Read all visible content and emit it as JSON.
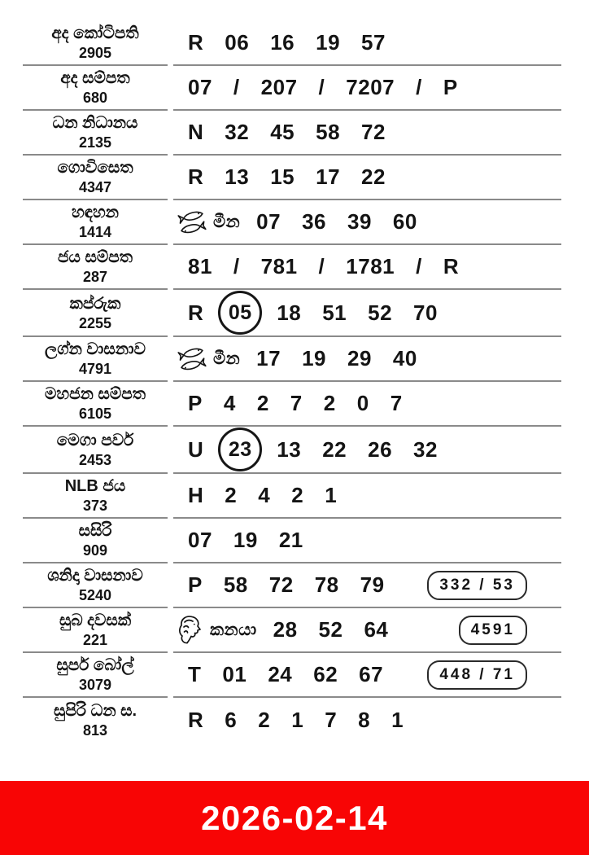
{
  "colors": {
    "divider": "#8a8a8a",
    "text": "#141414",
    "footer_bg": "#f80505",
    "footer_text": "#ffffff"
  },
  "icons": {
    "pisces": "pisces-icon",
    "virgo": "virgo-icon"
  },
  "footer": {
    "date": "2026-02-14"
  },
  "rows": [
    {
      "name": "අද කෝටිපති",
      "draw": "2905",
      "cells": [
        {
          "t": "letter",
          "v": "R"
        },
        {
          "t": "num",
          "v": "06"
        },
        {
          "t": "num",
          "v": "16"
        },
        {
          "t": "num",
          "v": "19"
        },
        {
          "t": "num",
          "v": "57"
        }
      ]
    },
    {
      "name": "අද සම්පත",
      "draw": "680",
      "cells": [
        {
          "t": "num",
          "v": "07"
        },
        {
          "t": "slash",
          "v": "/"
        },
        {
          "t": "num",
          "v": "207"
        },
        {
          "t": "slash",
          "v": "/"
        },
        {
          "t": "num",
          "v": "7207"
        },
        {
          "t": "slash",
          "v": "/"
        },
        {
          "t": "letter",
          "v": "P"
        }
      ]
    },
    {
      "name": "ධන නිධානය",
      "draw": "2135",
      "cells": [
        {
          "t": "letter",
          "v": "N"
        },
        {
          "t": "num",
          "v": "32"
        },
        {
          "t": "num",
          "v": "45"
        },
        {
          "t": "num",
          "v": "58"
        },
        {
          "t": "num",
          "v": "72"
        }
      ]
    },
    {
      "name": "ගොවිසෙත",
      "draw": "4347",
      "cells": [
        {
          "t": "letter",
          "v": "R"
        },
        {
          "t": "num",
          "v": "13"
        },
        {
          "t": "num",
          "v": "15"
        },
        {
          "t": "num",
          "v": "17"
        },
        {
          "t": "num",
          "v": "22"
        }
      ]
    },
    {
      "name": "හඳහන",
      "draw": "1414",
      "cells": [
        {
          "t": "zodiac",
          "icon": "pisces",
          "v": "මීන"
        },
        {
          "t": "num",
          "v": "07"
        },
        {
          "t": "num",
          "v": "36"
        },
        {
          "t": "num",
          "v": "39"
        },
        {
          "t": "num",
          "v": "60"
        }
      ]
    },
    {
      "name": "ජය සම්පත",
      "draw": "287",
      "cells": [
        {
          "t": "num",
          "v": "81"
        },
        {
          "t": "slash",
          "v": "/"
        },
        {
          "t": "num",
          "v": "781"
        },
        {
          "t": "slash",
          "v": "/"
        },
        {
          "t": "num",
          "v": "1781"
        },
        {
          "t": "slash",
          "v": "/"
        },
        {
          "t": "letter",
          "v": "R"
        }
      ]
    },
    {
      "name": "කප්රුක",
      "draw": "2255",
      "cells": [
        {
          "t": "letter",
          "v": "R"
        },
        {
          "t": "circled",
          "v": "05"
        },
        {
          "t": "num",
          "v": "18"
        },
        {
          "t": "num",
          "v": "51"
        },
        {
          "t": "num",
          "v": "52"
        },
        {
          "t": "num",
          "v": "70"
        }
      ]
    },
    {
      "name": "ලග්න වාසනාව",
      "draw": "4791",
      "cells": [
        {
          "t": "zodiac",
          "icon": "pisces",
          "v": "මීන"
        },
        {
          "t": "num",
          "v": "17"
        },
        {
          "t": "num",
          "v": "19"
        },
        {
          "t": "num",
          "v": "29"
        },
        {
          "t": "num",
          "v": "40"
        }
      ]
    },
    {
      "name": "මහජන සම්පත",
      "draw": "6105",
      "cells": [
        {
          "t": "letter",
          "v": "P"
        },
        {
          "t": "num",
          "v": "4"
        },
        {
          "t": "num",
          "v": "2"
        },
        {
          "t": "num",
          "v": "7"
        },
        {
          "t": "num",
          "v": "2"
        },
        {
          "t": "num",
          "v": "0"
        },
        {
          "t": "num",
          "v": "7"
        }
      ]
    },
    {
      "name": "මෙගා පවර්",
      "draw": "2453",
      "cells": [
        {
          "t": "letter",
          "v": "U"
        },
        {
          "t": "circled",
          "v": "23"
        },
        {
          "t": "num",
          "v": "13"
        },
        {
          "t": "num",
          "v": "22"
        },
        {
          "t": "num",
          "v": "26"
        },
        {
          "t": "num",
          "v": "32"
        }
      ]
    },
    {
      "name": "NLB ජය",
      "draw": "373",
      "cells": [
        {
          "t": "letter",
          "v": "H"
        },
        {
          "t": "num",
          "v": "2"
        },
        {
          "t": "num",
          "v": "4"
        },
        {
          "t": "num",
          "v": "2"
        },
        {
          "t": "num",
          "v": "1"
        }
      ]
    },
    {
      "name": "සසිරි",
      "draw": "909",
      "cells": [
        {
          "t": "num",
          "v": "07"
        },
        {
          "t": "num",
          "v": "19"
        },
        {
          "t": "num",
          "v": "21"
        }
      ]
    },
    {
      "name": "ශනිදා වාසනාව",
      "draw": "5240",
      "cells": [
        {
          "t": "letter",
          "v": "P"
        },
        {
          "t": "num",
          "v": "58"
        },
        {
          "t": "num",
          "v": "72"
        },
        {
          "t": "num",
          "v": "78"
        },
        {
          "t": "num",
          "v": "79"
        },
        {
          "t": "box",
          "v": "332 / 53"
        }
      ]
    },
    {
      "name": "සුබ දවසක්",
      "draw": "221",
      "cells": [
        {
          "t": "zodiac",
          "icon": "virgo",
          "v": "කනයා"
        },
        {
          "t": "num",
          "v": "28"
        },
        {
          "t": "num",
          "v": "52"
        },
        {
          "t": "num",
          "v": "64"
        },
        {
          "t": "box",
          "v": "4591"
        }
      ]
    },
    {
      "name": "සුපර් බෝල්",
      "draw": "3079",
      "cells": [
        {
          "t": "letter",
          "v": "T"
        },
        {
          "t": "num",
          "v": "01"
        },
        {
          "t": "num",
          "v": "24"
        },
        {
          "t": "num",
          "v": "62"
        },
        {
          "t": "num",
          "v": "67"
        },
        {
          "t": "box",
          "v": "448 / 71"
        }
      ]
    },
    {
      "name": "සුපිරි ධන ස.",
      "draw": "813",
      "cells": [
        {
          "t": "letter",
          "v": "R"
        },
        {
          "t": "num",
          "v": "6"
        },
        {
          "t": "num",
          "v": "2"
        },
        {
          "t": "num",
          "v": "1"
        },
        {
          "t": "num",
          "v": "7"
        },
        {
          "t": "num",
          "v": "8"
        },
        {
          "t": "num",
          "v": "1"
        }
      ]
    }
  ]
}
